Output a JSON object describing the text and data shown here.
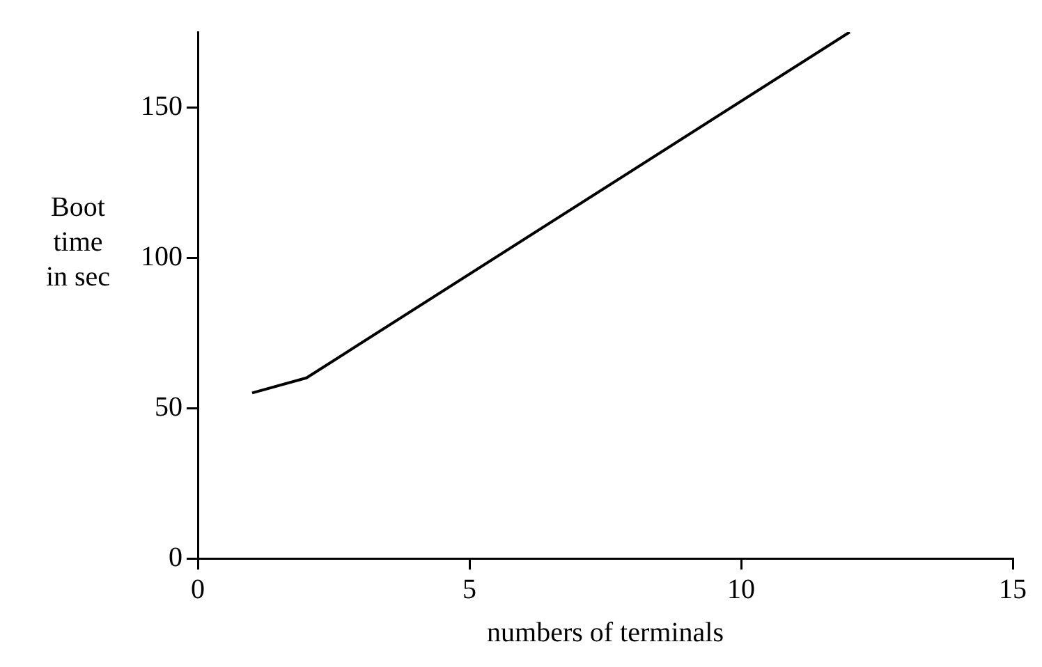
{
  "chart_data": {
    "type": "line",
    "xlabel": "numbers of terminals",
    "ylabel": "Boot time in sec",
    "x": [
      1,
      2,
      12
    ],
    "series": [
      {
        "color": "#000000",
        "values": [
          55,
          60,
          175
        ]
      }
    ],
    "xlim": [
      0,
      15
    ],
    "xticks": [
      0,
      5,
      10,
      15
    ],
    "ylim": [
      0,
      175
    ],
    "yticks": [
      0,
      50,
      100,
      150
    ],
    "grid": false,
    "legend": false,
    "marker": "none",
    "line_style": "solid"
  }
}
